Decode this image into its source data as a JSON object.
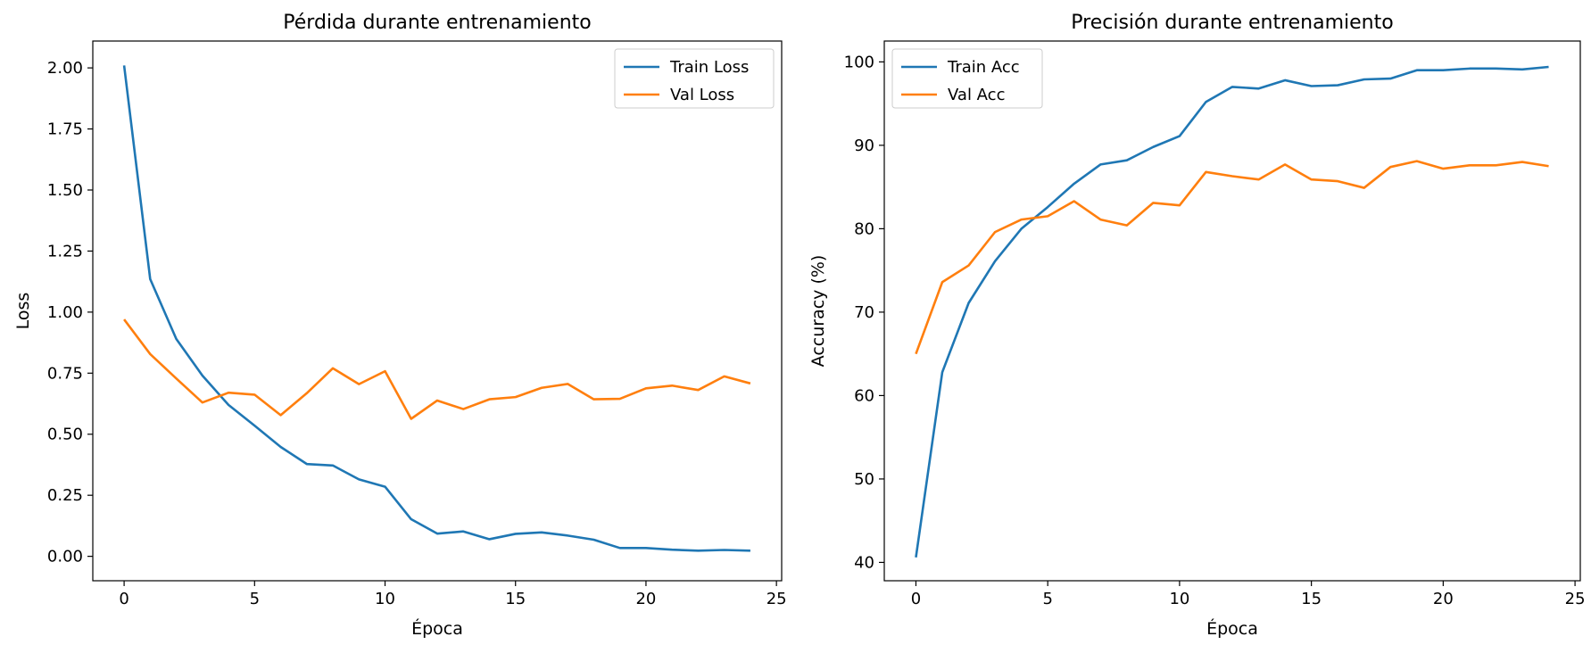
{
  "chart_data": [
    {
      "type": "line",
      "title": "Pérdida durante entrenamiento",
      "xlabel": "Época",
      "ylabel": "Loss",
      "xlim": [
        -1.2,
        25.2
      ],
      "ylim": [
        -0.1,
        2.11
      ],
      "xticks": [
        0,
        5,
        10,
        15,
        20,
        25
      ],
      "yticks": [
        0.0,
        0.25,
        0.5,
        0.75,
        1.0,
        1.25,
        1.5,
        1.75,
        2.0
      ],
      "ytick_decimals": 2,
      "legend": "upper right",
      "x": [
        0,
        1,
        2,
        3,
        4,
        5,
        6,
        7,
        8,
        9,
        10,
        11,
        12,
        13,
        14,
        15,
        16,
        17,
        18,
        19,
        20,
        21,
        22,
        23,
        24
      ],
      "series": [
        {
          "name": "Train Loss",
          "color": "#1f77b4",
          "values": [
            2.01,
            1.135,
            0.89,
            0.74,
            0.62,
            0.535,
            0.448,
            0.378,
            0.372,
            0.315,
            0.285,
            0.152,
            0.093,
            0.102,
            0.07,
            0.092,
            0.098,
            0.085,
            0.068,
            0.034,
            0.034,
            0.027,
            0.023,
            0.026,
            0.023
          ]
        },
        {
          "name": "Val Loss",
          "color": "#ff7f0e",
          "values": [
            0.97,
            0.828,
            0.728,
            0.63,
            0.67,
            0.662,
            0.578,
            0.668,
            0.77,
            0.705,
            0.758,
            0.563,
            0.638,
            0.603,
            0.643,
            0.652,
            0.69,
            0.706,
            0.643,
            0.645,
            0.688,
            0.699,
            0.681,
            0.737,
            0.708
          ]
        }
      ]
    },
    {
      "type": "line",
      "title": "Precisión durante entrenamiento",
      "xlabel": "Época",
      "ylabel": "Accuracy (%)",
      "xlim": [
        -1.2,
        25.2
      ],
      "ylim": [
        37.8,
        102.5
      ],
      "xticks": [
        0,
        5,
        10,
        15,
        20,
        25
      ],
      "yticks": [
        40,
        50,
        60,
        70,
        80,
        90,
        100
      ],
      "ytick_decimals": 0,
      "legend": "upper left",
      "x": [
        0,
        1,
        2,
        3,
        4,
        5,
        6,
        7,
        8,
        9,
        10,
        11,
        12,
        13,
        14,
        15,
        16,
        17,
        18,
        19,
        20,
        21,
        22,
        23,
        24
      ],
      "series": [
        {
          "name": "Train Acc",
          "color": "#1f77b4",
          "values": [
            40.6,
            62.8,
            71.1,
            76.1,
            80.0,
            82.6,
            85.4,
            87.7,
            88.2,
            89.8,
            91.1,
            95.2,
            97.0,
            96.8,
            97.8,
            97.1,
            97.2,
            97.9,
            98.0,
            99.0,
            99.0,
            99.2,
            99.2,
            99.1,
            99.4
          ]
        },
        {
          "name": "Val Acc",
          "color": "#ff7f0e",
          "values": [
            65.0,
            73.6,
            75.6,
            79.6,
            81.1,
            81.5,
            83.3,
            81.1,
            80.4,
            83.1,
            82.8,
            86.8,
            86.3,
            85.9,
            87.7,
            85.9,
            85.7,
            84.9,
            87.4,
            88.1,
            87.2,
            87.6,
            87.6,
            88.0,
            87.5
          ]
        }
      ]
    }
  ]
}
